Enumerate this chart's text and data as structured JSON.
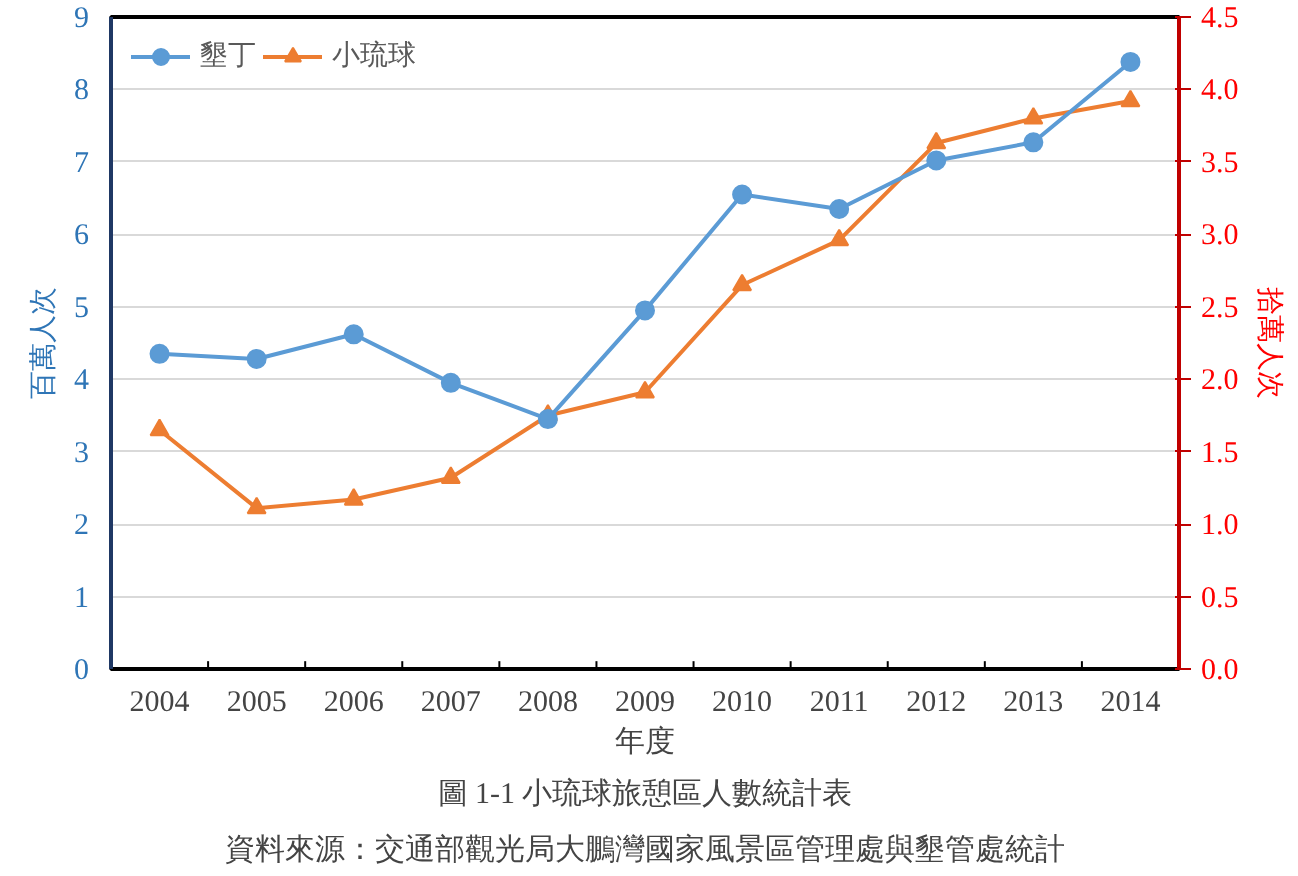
{
  "chart_data": {
    "type": "line",
    "title": "圖 1-1 小琉球旅憩區人數統計表",
    "xlabel": "年度",
    "ylabel": "百萬人次",
    "y2label": "拾萬人次",
    "annotations": [
      "資料來源：交通部觀光局大鵬灣國家風景區管理處與墾管處統計"
    ],
    "categories": [
      "2004",
      "2005",
      "2006",
      "2007",
      "2008",
      "2009",
      "2010",
      "2011",
      "2012",
      "2013",
      "2014"
    ],
    "series": [
      {
        "name": "墾丁",
        "color": "#5b9bd5",
        "marker": "circle",
        "values": [
          4.35,
          4.28,
          4.62,
          3.95,
          3.45,
          4.95,
          6.55,
          6.35,
          7.02,
          7.27,
          8.38
        ]
      },
      {
        "name": "小琉球",
        "color": "#ed7d31",
        "marker": "triangle",
        "axis": "y2",
        "values": [
          1.65,
          1.11,
          1.17,
          1.32,
          1.75,
          1.91,
          2.65,
          2.96,
          3.63,
          3.8,
          3.92
        ]
      }
    ],
    "ylim": [
      0,
      9
    ],
    "yticks": [
      0,
      1,
      2,
      3,
      4,
      5,
      6,
      7,
      8,
      9
    ],
    "y2lim": [
      0,
      4.5
    ],
    "y2ticks": [
      {
        "value": 0,
        "label": "0.0"
      },
      {
        "value": 0.5,
        "label": "0.5"
      },
      {
        "value": 1,
        "label": "1.0"
      },
      {
        "value": 1.5,
        "label": "1.5"
      },
      {
        "value": 2,
        "label": "2.0"
      },
      {
        "value": 2.5,
        "label": "2.5"
      },
      {
        "value": 3,
        "label": "3.0"
      },
      {
        "value": 3.5,
        "label": "3.5"
      },
      {
        "value": 4,
        "label": "4.0"
      },
      {
        "value": 4.5,
        "label": "4.5"
      }
    ],
    "grid": "y",
    "legend": "top left",
    "line_style": "solid"
  }
}
